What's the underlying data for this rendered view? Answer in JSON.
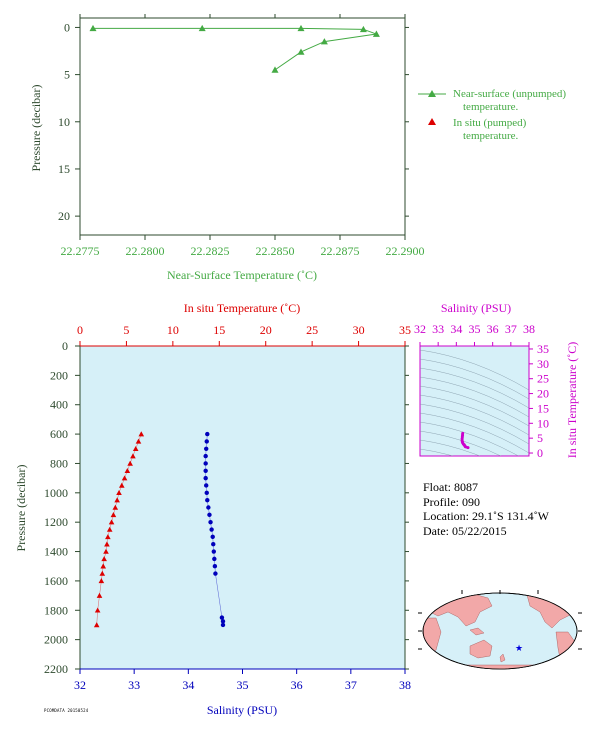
{
  "colors": {
    "green": "#44aa44",
    "red": "#dd0000",
    "blue": "#0000bb",
    "magenta": "#cc00cc",
    "axis_dark": "#2e4a2e",
    "panel_fill": "#d6f0f8",
    "land": "#f2a8a8",
    "ocean": "#d6f0f8"
  },
  "chart_data": [
    {
      "type": "line",
      "title": "",
      "xlabel": "Near-Surface Temperature (˚C)",
      "ylabel": "Pressure (decibar)",
      "xlim": [
        22.2775,
        22.29
      ],
      "ylim": [
        22,
        -1
      ],
      "xticks": [
        "22.2775",
        "22.2800",
        "22.2825",
        "22.2850",
        "22.2875",
        "22.2900"
      ],
      "yticks": [
        "0",
        "5",
        "10",
        "15",
        "20"
      ],
      "series": [
        {
          "name": "Near-surface (unpumped) temperature.",
          "x": [
            22.285,
            22.286,
            22.2869,
            22.2889,
            22.2884,
            22.286,
            22.2822,
            22.278
          ],
          "y": [
            4.5,
            2.6,
            1.5,
            0.7,
            0.2,
            0.1,
            0.1,
            0.1
          ]
        },
        {
          "name": "In situ (pumped) temperature.",
          "x": [],
          "y": []
        }
      ],
      "legend": "right"
    },
    {
      "type": "scatter",
      "title": "",
      "xlabel": "Salinity (PSU)",
      "x2label": "In situ Temperature (˚C)",
      "ylabel": "Pressure (decibar)",
      "xlim": [
        32,
        38
      ],
      "x2lim": [
        0,
        35
      ],
      "ylim": [
        2200,
        0
      ],
      "xticks": [
        "32",
        "33",
        "34",
        "35",
        "36",
        "37",
        "38"
      ],
      "x2ticks": [
        "0",
        "5",
        "10",
        "15",
        "20",
        "25",
        "30",
        "35"
      ],
      "yticks": [
        "0",
        "200",
        "400",
        "600",
        "800",
        "1000",
        "1200",
        "1400",
        "1600",
        "1800",
        "2000",
        "2200"
      ],
      "series": [
        {
          "name": "Temperature",
          "axis": "x2",
          "x": [
            6.6,
            6.3,
            6.0,
            5.7,
            5.4,
            5.1,
            4.8,
            4.5,
            4.2,
            4.0,
            3.8,
            3.6,
            3.4,
            3.2,
            3.0,
            2.9,
            2.8,
            2.6,
            2.5,
            2.4,
            2.3,
            2.1,
            1.9,
            1.8
          ],
          "y": [
            600,
            650,
            700,
            750,
            800,
            850,
            900,
            950,
            1000,
            1050,
            1100,
            1150,
            1200,
            1250,
            1300,
            1350,
            1400,
            1450,
            1500,
            1550,
            1600,
            1700,
            1800,
            1900
          ]
        },
        {
          "name": "Salinity",
          "axis": "x",
          "x": [
            34.35,
            34.34,
            34.33,
            34.32,
            34.32,
            34.32,
            34.32,
            34.33,
            34.34,
            34.35,
            34.37,
            34.39,
            34.41,
            34.43,
            34.45,
            34.46,
            34.47,
            34.48,
            34.49,
            34.5,
            34.62,
            34.64,
            34.64
          ],
          "y": [
            600,
            650,
            700,
            750,
            800,
            850,
            900,
            950,
            1000,
            1050,
            1100,
            1150,
            1200,
            1250,
            1300,
            1350,
            1400,
            1450,
            1500,
            1550,
            1850,
            1875,
            1900
          ]
        }
      ],
      "grid": false
    },
    {
      "type": "scatter",
      "title": "",
      "xlabel": "Salinity (PSU)",
      "ylabel": "In situ Temperature (˚C)",
      "xlim": [
        32,
        38
      ],
      "ylim": [
        -1,
        36
      ],
      "xticks": [
        "32",
        "33",
        "34",
        "35",
        "36",
        "37",
        "38"
      ],
      "yticks": [
        "0",
        "5",
        "10",
        "15",
        "20",
        "25",
        "30",
        "35"
      ],
      "series": [
        {
          "name": "T-S",
          "x": [
            34.35,
            34.34,
            34.33,
            34.32,
            34.32,
            34.33,
            34.35,
            34.39,
            34.43,
            34.46,
            34.48,
            34.5,
            34.64
          ],
          "y": [
            6.6,
            6.0,
            5.4,
            4.8,
            4.2,
            3.8,
            3.4,
            3.0,
            2.8,
            2.5,
            2.3,
            2.1,
            1.8
          ]
        }
      ]
    }
  ],
  "info": {
    "float": "Float:  8087",
    "profile": "Profile:  090",
    "location": "Location:  29.1˚S  131.4˚W",
    "date": "Date:  05/22/2015"
  },
  "footer_code": "PCOMDATA 20150524"
}
